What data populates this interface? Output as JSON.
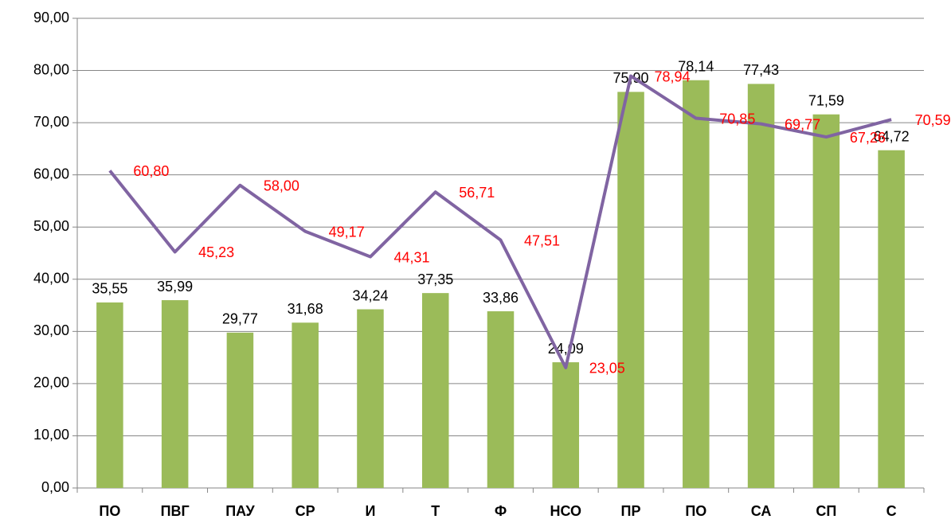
{
  "chart_data": {
    "type": "combo",
    "categories": [
      "ПО",
      "ПВГ",
      "ПАУ",
      "СР",
      "И",
      "Т",
      "Ф",
      "НСО",
      "ПР",
      "ПО",
      "СА",
      "СП",
      "С"
    ],
    "series": [
      {
        "type": "bar",
        "color": "#9bbb59",
        "values": [
          35.55,
          35.99,
          29.77,
          31.68,
          34.24,
          37.35,
          33.86,
          24.09,
          75.9,
          78.14,
          77.43,
          71.59,
          64.72
        ],
        "value_labels": [
          "35,55",
          "35,99",
          "29,77",
          "31,68",
          "34,24",
          "37,35",
          "33,86",
          "24,09",
          "75,90",
          "78,14",
          "77,43",
          "71,59",
          "64,72"
        ],
        "label_color": "#000000"
      },
      {
        "type": "line",
        "color": "#8064a2",
        "values": [
          60.8,
          45.23,
          58.0,
          49.17,
          44.31,
          56.71,
          47.51,
          23.05,
          78.94,
          70.85,
          69.77,
          67.26,
          70.59
        ],
        "value_labels": [
          "60,80",
          "45,23",
          "58,00",
          "49,17",
          "44,31",
          "56,71",
          "47,51",
          "23,05",
          "78,94",
          "70,85",
          "69,77",
          "67,26",
          "70,59"
        ],
        "label_color": "#ff0000"
      }
    ],
    "ylim": [
      0,
      90
    ],
    "yticks": [
      {
        "value": 0,
        "label": "0,00"
      },
      {
        "value": 10,
        "label": "10,00"
      },
      {
        "value": 20,
        "label": "20,00"
      },
      {
        "value": 30,
        "label": "30,00"
      },
      {
        "value": 40,
        "label": "40,00"
      },
      {
        "value": 50,
        "label": "50,00"
      },
      {
        "value": 60,
        "label": "60,00"
      },
      {
        "value": 70,
        "label": "70,00"
      },
      {
        "value": 80,
        "label": "80,00"
      },
      {
        "value": 90,
        "label": "90,00"
      }
    ],
    "grid": true
  }
}
